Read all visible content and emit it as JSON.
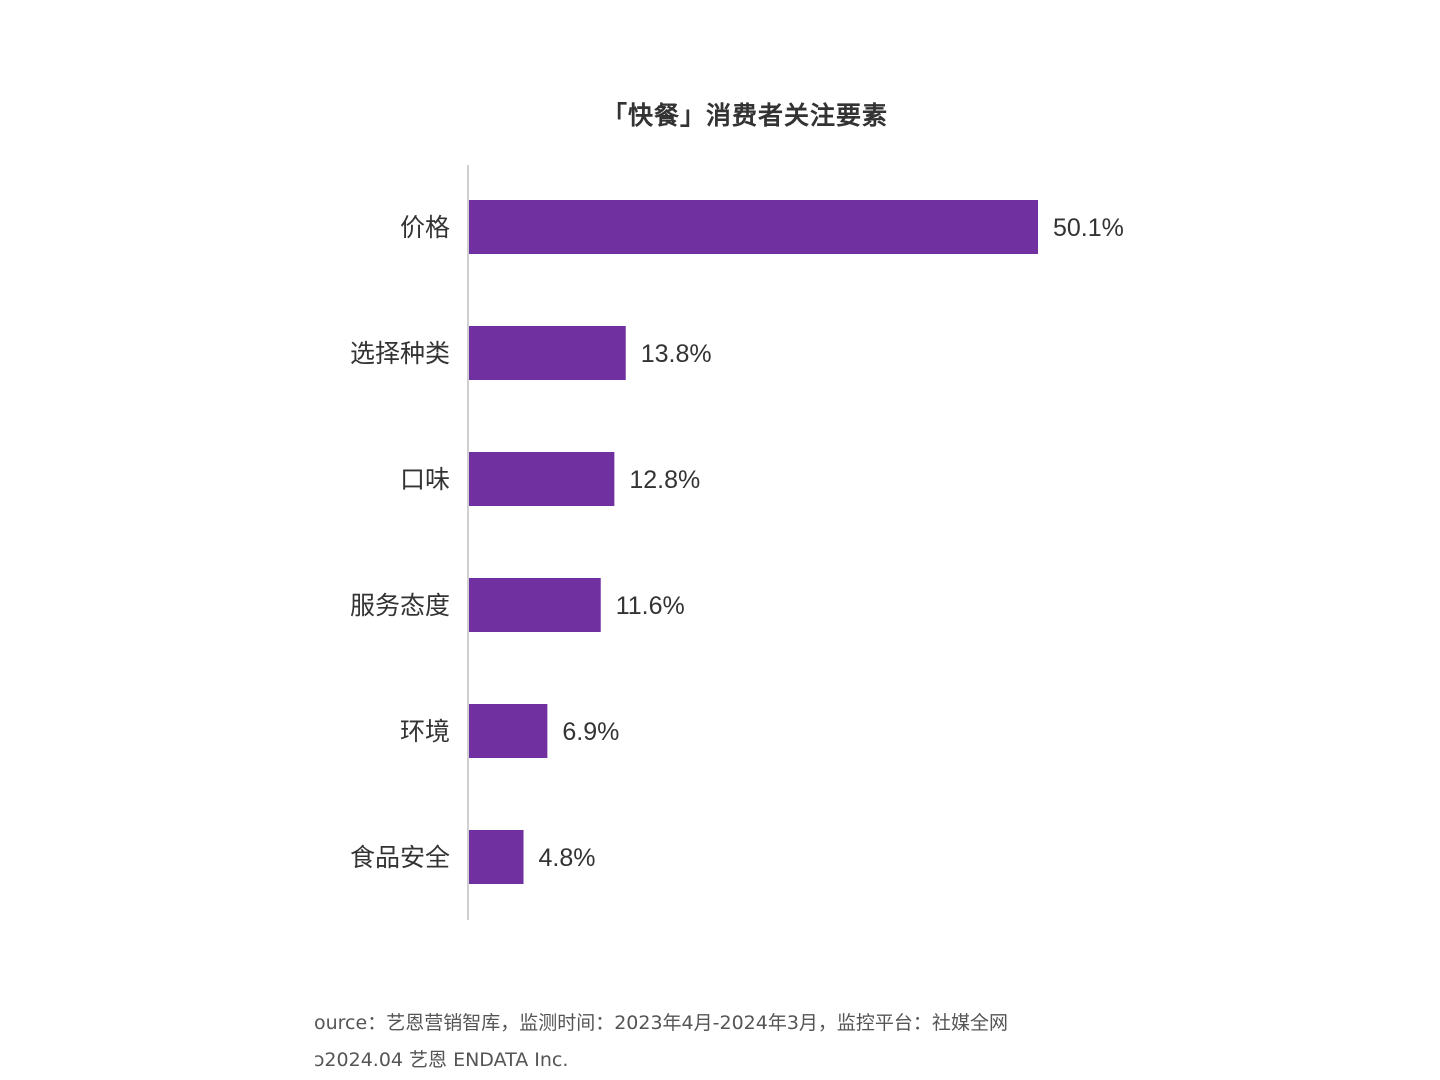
{
  "chart_data": {
    "type": "bar",
    "orientation": "horizontal",
    "title": "「快餐」消费者关注要素",
    "categories": [
      "价格",
      "选择种类",
      "口味",
      "服务态度",
      "环境",
      "食品安全"
    ],
    "values": [
      50.1,
      13.8,
      12.8,
      11.6,
      6.9,
      4.8
    ],
    "value_labels": [
      "50.1%",
      "13.8%",
      "12.8%",
      "11.6%",
      "6.9%",
      "4.8%"
    ],
    "unit": "%",
    "bar_color": "#7030a0",
    "axis_color": "#d0d0d0",
    "grid": false,
    "legend": "none"
  },
  "footer": {
    "source": "ource：艺恩营销智库，监测时间：2023年4月-2024年3月，监控平台：社媒全网",
    "copyright": "ɔ2024.04  艺恩 ENDATA Inc."
  }
}
